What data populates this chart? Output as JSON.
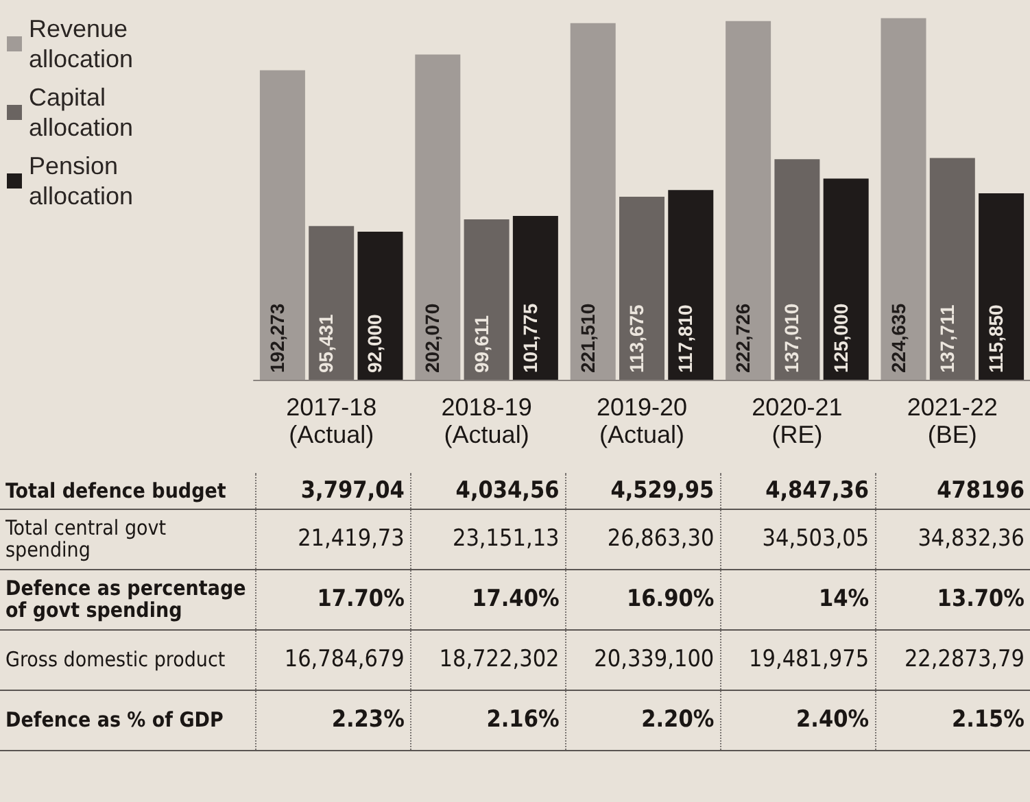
{
  "chart_data": [
    {
      "type": "bar",
      "categories": [
        "2017-18 (Actual)",
        "2018-19 (Actual)",
        "2019-20 (Actual)",
        "2020-21 (RE)",
        "2021-22 (BE)"
      ],
      "series": [
        {
          "name": "Revenue allocation",
          "color": "#a19b97",
          "values": [
            192273,
            202070,
            221510,
            222726,
            224635
          ],
          "value_labels": [
            "192,273",
            "202,070",
            "221,510",
            "222,726",
            "224,635"
          ]
        },
        {
          "name": "Capital allocation",
          "color": "#6a6461",
          "values": [
            95431,
            99611,
            113675,
            137010,
            137711
          ],
          "value_labels": [
            "95,431",
            "99,611",
            "113,675",
            "137,010",
            "137,711"
          ]
        },
        {
          "name": "Pension allocation",
          "color": "#1f1b1a",
          "values": [
            92000,
            101775,
            117810,
            125000,
            115850
          ],
          "value_labels": [
            "92,000",
            "101,775",
            "117,810",
            "125,000",
            "115,850"
          ]
        }
      ],
      "legend": "top left",
      "grid": false,
      "tick_labels": "x"
    },
    {
      "type": "other",
      "y_categories": [
        "Total defence budget",
        "Total central govt spending",
        "Defence as percentage of govt spending",
        "Gross domestic product",
        "Defence as % of GDP"
      ],
      "cell_labels": [
        [
          "3,797,04",
          "4,034,56",
          "4,529,95",
          "4,847,36",
          "478196"
        ],
        [
          "21,419,73",
          "23,151,13",
          "26,863,30",
          "34,503,05",
          "34,832,36"
        ],
        [
          "17.70%",
          "17.40%",
          "16.90%",
          "14%",
          "13.70%"
        ],
        [
          "16,784,679",
          "18,722,302",
          "20,339,100",
          "19,481,975",
          "22,2873,79"
        ],
        [
          "2.23%",
          "2.16%",
          "2.20%",
          "2.40%",
          "2.15%"
        ]
      ]
    }
  ]
}
